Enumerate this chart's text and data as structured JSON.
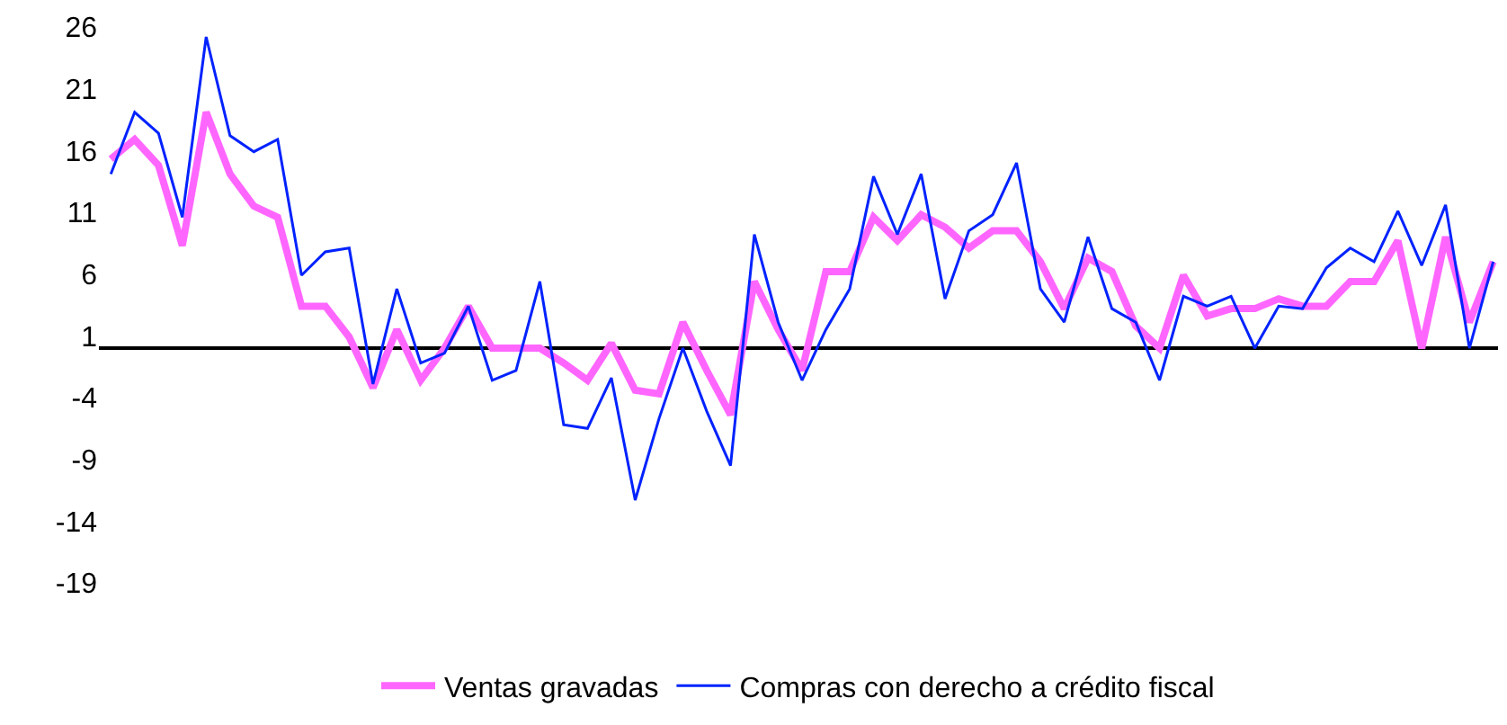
{
  "chart_data": {
    "type": "line",
    "categories": [
      null,
      null,
      null,
      null,
      null,
      null,
      null,
      null,
      null,
      null,
      null,
      null,
      null,
      null,
      null,
      null,
      null,
      null,
      null,
      null,
      null,
      null,
      null,
      null,
      null,
      null,
      null,
      null,
      null,
      null,
      null,
      null,
      null,
      null,
      null,
      null,
      null,
      null,
      null,
      null,
      null,
      null,
      null,
      null,
      null,
      null,
      null,
      null,
      null,
      null,
      null,
      null,
      null,
      null,
      null,
      null,
      null,
      null,
      null
    ],
    "series": [
      {
        "name": "Ventas gravadas",
        "color": "#ff66ff",
        "values": [
          15.3,
          16.9,
          14.8,
          8.3,
          19.1,
          14.1,
          11.5,
          10.6,
          3.4,
          3.4,
          0.9,
          -3.2,
          1.5,
          -2.6,
          0,
          3.4,
          0,
          0,
          0,
          -1.2,
          -2.6,
          0.4,
          -3.4,
          -3.7,
          2.1,
          -1.8,
          -5.4,
          5.4,
          1.5,
          -1.8,
          6.2,
          6.2,
          10.6,
          8.7,
          10.8,
          9.8,
          8.1,
          9.5,
          9.5,
          7.0,
          3.2,
          7.3,
          6.2,
          1.8,
          0,
          5.9,
          2.6,
          3.2,
          3.2,
          4.0,
          3.4,
          3.4,
          5.4,
          5.4,
          8.7,
          0,
          9.0,
          2.1,
          7.0
        ]
      },
      {
        "name": "Compras con derecho a crédito fiscal",
        "color": "#0022ff",
        "values": [
          14.1,
          19.1,
          17.4,
          10.6,
          25.2,
          17.2,
          15.9,
          16.9,
          5.9,
          7.8,
          8.1,
          -2.9,
          4.8,
          -1.2,
          -0.4,
          3.4,
          -2.6,
          -1.8,
          5.4,
          -6.2,
          -6.5,
          -2.4,
          -12.3,
          -5.7,
          0,
          -5.1,
          -9.5,
          9.2,
          2.1,
          -2.6,
          1.5,
          4.8,
          13.9,
          9.2,
          14.1,
          4.0,
          9.5,
          10.8,
          15.0,
          4.8,
          2.1,
          9.0,
          3.2,
          2.1,
          -2.6,
          4.2,
          3.4,
          4.2,
          0,
          3.4,
          3.2,
          6.5,
          8.1,
          7.0,
          11.1,
          6.7,
          11.6,
          0,
          7.0
        ]
      }
    ],
    "ylim": [
      -19,
      26
    ],
    "yticks": [
      26,
      21,
      16,
      11,
      6,
      1,
      -4,
      -9,
      -14,
      -19
    ],
    "legend": "bottom",
    "marker": "none",
    "line_style": "solid"
  }
}
